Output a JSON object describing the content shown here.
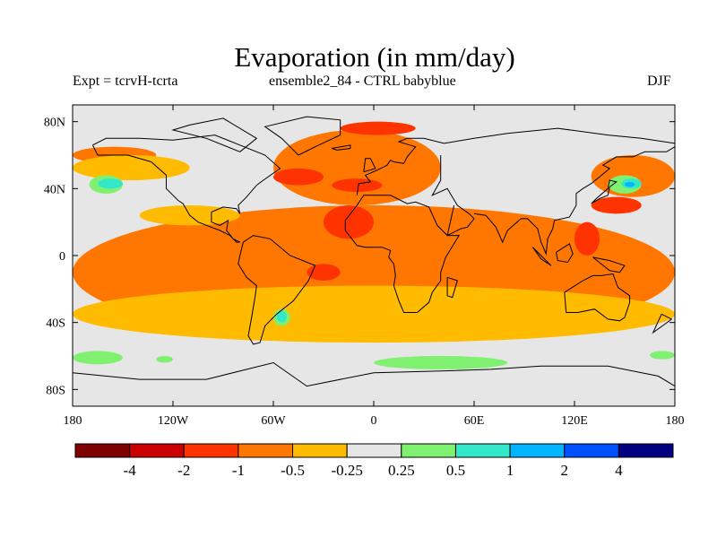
{
  "header": {
    "title": "Evaporation (in mm/day)",
    "left": "Expt = tcrvH-tcrta",
    "center": "ensemble2_84 - CTRL babyblue",
    "right": "DJF"
  },
  "chart_data": {
    "type": "heatmap",
    "title": "Evaporation (in mm/day)",
    "projection": "cylindrical equidistant",
    "x_ticks": [
      "180",
      "120W",
      "60W",
      "0",
      "60E",
      "120E",
      "180"
    ],
    "x_tick_values": [
      -180,
      -120,
      -60,
      0,
      60,
      120,
      180
    ],
    "y_ticks": [
      "80N",
      "40N",
      "0",
      "40S",
      "80S"
    ],
    "y_tick_values": [
      80,
      40,
      0,
      -40,
      -80
    ],
    "xlim": [
      -180,
      180
    ],
    "ylim": [
      -90,
      90
    ],
    "colorbar": {
      "levels": [
        "-4",
        "-2",
        "-1",
        "-0.5",
        "-0.25",
        "0.25",
        "0.5",
        "1",
        "2",
        "4"
      ],
      "colors": [
        "#7f0000",
        "#cc0000",
        "#ff3300",
        "#ff7700",
        "#ffbb00",
        "#e6e6e6",
        "#80f070",
        "#33e8c8",
        "#00b4ff",
        "#0050ff",
        "#000080"
      ]
    },
    "regions": [
      {
        "level": "< -4",
        "color": "#7f0000",
        "areas": []
      },
      {
        "level": "-2 to -1",
        "color": "#ff3300",
        "areas": [
          {
            "lon": [
              -20,
              25
            ],
            "lat": [
              72,
              80
            ]
          },
          {
            "lon": [
              -60,
              -30
            ],
            "lat": [
              42,
              52
            ]
          },
          {
            "lon": [
              -25,
              5
            ],
            "lat": [
              38,
              46
            ]
          },
          {
            "lon": [
              -30,
              0
            ],
            "lat": [
              10,
              30
            ]
          },
          {
            "lon": [
              130,
              160
            ],
            "lat": [
              25,
              35
            ]
          },
          {
            "lon": [
              120,
              135
            ],
            "lat": [
              0,
              20
            ]
          },
          {
            "lon": [
              -40,
              -20
            ],
            "lat": [
              -15,
              -5
            ]
          }
        ]
      },
      {
        "level": "-1 to -0.5",
        "color": "#ff7700",
        "areas": [
          {
            "lon": [
              -180,
              180
            ],
            "lat": [
              -50,
              30
            ]
          },
          {
            "lon": [
              -60,
              40
            ],
            "lat": [
              30,
              75
            ]
          },
          {
            "lon": [
              -180,
              -130
            ],
            "lat": [
              55,
              65
            ]
          },
          {
            "lon": [
              130,
              180
            ],
            "lat": [
              35,
              60
            ]
          }
        ]
      },
      {
        "level": "-0.5 to -0.25",
        "color": "#ffbb00",
        "areas": [
          {
            "lon": [
              -180,
              180
            ],
            "lat": [
              -52,
              -18
            ]
          },
          {
            "lon": [
              -180,
              -110
            ],
            "lat": [
              45,
              60
            ]
          },
          {
            "lon": [
              -140,
              -80
            ],
            "lat": [
              18,
              30
            ]
          }
        ]
      },
      {
        "level": "0.25 to 0.5",
        "color": "#80f070",
        "areas": [
          {
            "lon": [
              -170,
              -150
            ],
            "lat": [
              37,
              48
            ]
          },
          {
            "lon": [
              140,
              160
            ],
            "lat": [
              37,
              48
            ]
          },
          {
            "lon": [
              -60,
              -50
            ],
            "lat": [
              -42,
              -32
            ]
          },
          {
            "lon": [
              -180,
              -150
            ],
            "lat": [
              -65,
              -57
            ]
          },
          {
            "lon": [
              0,
              80
            ],
            "lat": [
              -68,
              -60
            ]
          },
          {
            "lon": [
              -130,
              -120
            ],
            "lat": [
              -64,
              -60
            ]
          },
          {
            "lon": [
              165,
              180
            ],
            "lat": [
              -62,
              -57
            ]
          }
        ]
      },
      {
        "level": "0.5 to 1",
        "color": "#33e8c8",
        "areas": [
          {
            "lon": [
              -165,
              -150
            ],
            "lat": [
              40,
              46
            ]
          },
          {
            "lon": [
              148,
              160
            ],
            "lat": [
              40,
              46
            ]
          },
          {
            "lon": [
              -58,
              -52
            ],
            "lat": [
              -40,
              -33
            ]
          }
        ]
      },
      {
        "level": "1 to 2",
        "color": "#00b4ff",
        "areas": [
          {
            "lon": [
              150,
              156
            ],
            "lat": [
              41,
              44
            ]
          }
        ]
      }
    ]
  }
}
